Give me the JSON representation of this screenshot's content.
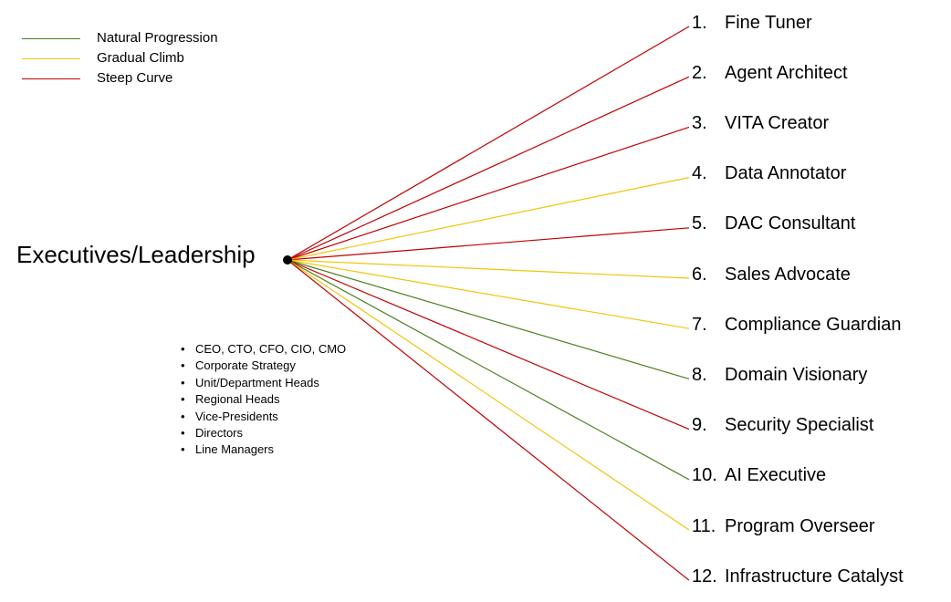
{
  "legend": [
    {
      "label": "Natural Progression",
      "color": "#4a7f20"
    },
    {
      "label": "Gradual Climb",
      "color": "#f2c40a"
    },
    {
      "label": "Steep Curve",
      "color": "#c00000"
    }
  ],
  "root": {
    "label": "Executives/Leadership"
  },
  "roles_list": [
    "CEO, CTO, CFO, CIO, CMO",
    "Corporate Strategy",
    "Unit/Department Heads",
    "Regional Heads",
    "Vice-Presidents",
    "Directors",
    "Line Managers"
  ],
  "targets": [
    {
      "number": "1.",
      "label": "Fine Tuner",
      "curve": "Steep Curve"
    },
    {
      "number": "2.",
      "label": "Agent Architect",
      "curve": "Steep Curve"
    },
    {
      "number": "3.",
      "label": "VITA Creator",
      "curve": "Steep Curve"
    },
    {
      "number": "4.",
      "label": "Data Annotator",
      "curve": "Gradual Climb"
    },
    {
      "number": "5.",
      "label": "DAC Consultant",
      "curve": "Steep Curve"
    },
    {
      "number": "6.",
      "label": "Sales Advocate",
      "curve": "Gradual Climb"
    },
    {
      "number": "7.",
      "label": "Compliance Guardian",
      "curve": "Gradual Climb"
    },
    {
      "number": "8.",
      "label": "Domain Visionary",
      "curve": "Natural Progression"
    },
    {
      "number": "9.",
      "label": "Security Specialist",
      "curve": "Steep Curve"
    },
    {
      "number": "10.",
      "label": "AI Executive",
      "curve": "Natural Progression"
    },
    {
      "number": "11.",
      "label": "Program Overseer",
      "curve": "Gradual Climb"
    },
    {
      "number": "12.",
      "label": "Infrastructure Catalyst",
      "curve": "Steep Curve"
    }
  ]
}
